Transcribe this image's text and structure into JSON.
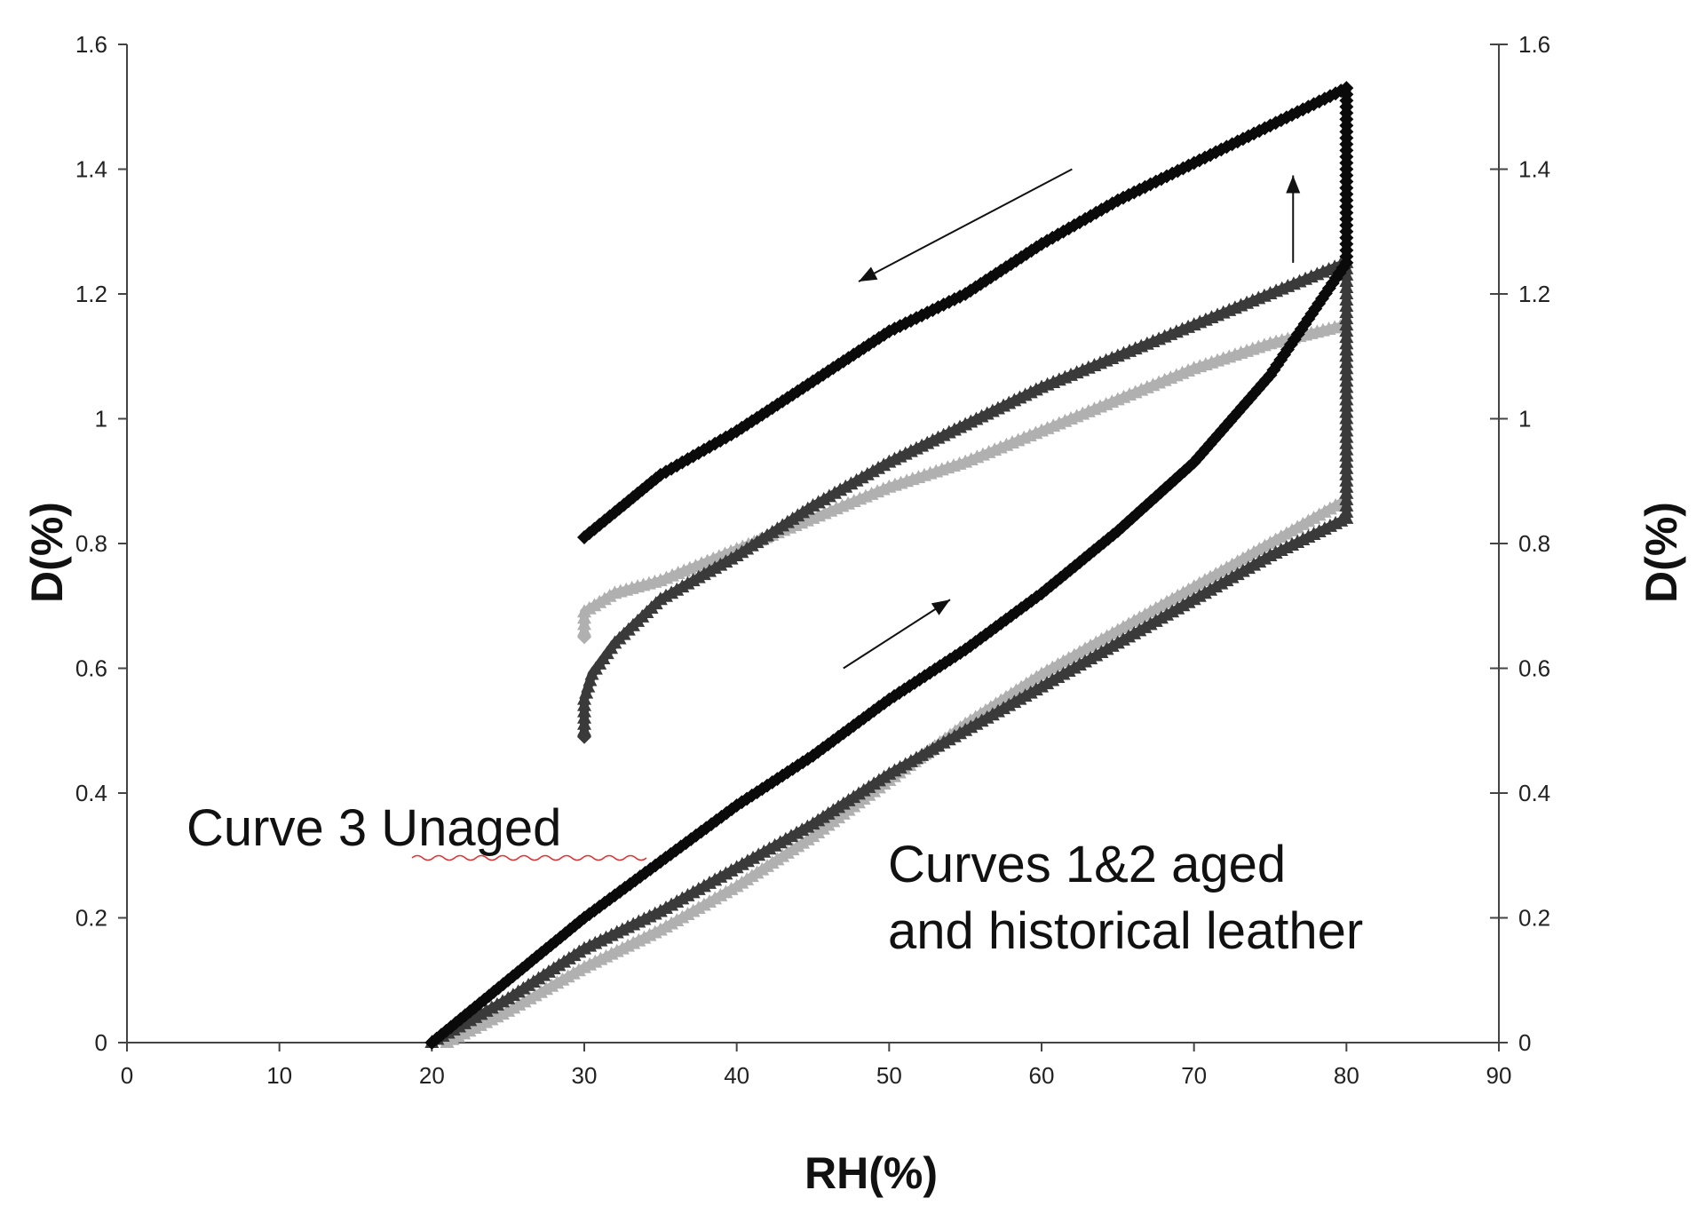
{
  "chart_data": {
    "type": "scatter",
    "xlabel": "RH(%)",
    "ylabel_left": "D(%)",
    "ylabel_right": "D(%)",
    "xlim": [
      0,
      90
    ],
    "ylim": [
      0,
      1.6
    ],
    "x_ticks": [
      "0",
      "10",
      "20",
      "30",
      "40",
      "50",
      "60",
      "70",
      "80",
      "90"
    ],
    "y_ticks": [
      "0",
      "0.2",
      "0.4",
      "0.6",
      "0.8",
      "1",
      "1.2",
      "1.4",
      "1.6"
    ],
    "grid": false,
    "annotations": {
      "unaged": "Curve 3 Unaged",
      "aged_line1": "Curves 1&2 aged",
      "aged_line2": "and historical leather"
    },
    "arrows": [
      {
        "from": [
          62,
          1.4
        ],
        "to": [
          48,
          1.22
        ]
      },
      {
        "from": [
          76.5,
          1.25
        ],
        "to": [
          76.5,
          1.39
        ]
      },
      {
        "from": [
          47,
          0.6
        ],
        "to": [
          54,
          0.71
        ]
      }
    ],
    "series": [
      {
        "color": "#0a0a0a",
        "marker": "diamond",
        "points": [
          [
            20,
            0
          ],
          [
            25,
            0.1
          ],
          [
            30,
            0.2
          ],
          [
            35,
            0.29
          ],
          [
            40,
            0.38
          ],
          [
            45,
            0.46
          ],
          [
            50,
            0.55
          ],
          [
            55,
            0.63
          ],
          [
            60,
            0.72
          ],
          [
            65,
            0.82
          ],
          [
            70,
            0.93
          ],
          [
            75,
            1.07
          ],
          [
            80,
            1.25
          ],
          [
            80,
            1.3
          ],
          [
            80,
            1.4
          ],
          [
            80,
            1.53
          ],
          [
            75,
            1.47
          ],
          [
            70,
            1.41
          ],
          [
            65,
            1.35
          ],
          [
            60,
            1.28
          ],
          [
            55,
            1.2
          ],
          [
            50,
            1.14
          ],
          [
            45,
            1.06
          ],
          [
            40,
            0.98
          ],
          [
            35,
            0.91
          ],
          [
            32,
            0.85
          ],
          [
            30,
            0.81
          ]
        ]
      },
      {
        "color": "#3a3a3a",
        "marker": "triangle",
        "points": [
          [
            20,
            0
          ],
          [
            25,
            0.07
          ],
          [
            30,
            0.15
          ],
          [
            35,
            0.21
          ],
          [
            40,
            0.28
          ],
          [
            45,
            0.35
          ],
          [
            50,
            0.43
          ],
          [
            55,
            0.5
          ],
          [
            60,
            0.57
          ],
          [
            65,
            0.64
          ],
          [
            70,
            0.71
          ],
          [
            75,
            0.78
          ],
          [
            80,
            0.84
          ],
          [
            80,
            0.95
          ],
          [
            80,
            1.1
          ],
          [
            80,
            1.25
          ],
          [
            75,
            1.2
          ],
          [
            70,
            1.15
          ],
          [
            65,
            1.1
          ],
          [
            60,
            1.05
          ],
          [
            55,
            0.99
          ],
          [
            50,
            0.93
          ],
          [
            45,
            0.86
          ],
          [
            40,
            0.78
          ],
          [
            35,
            0.71
          ],
          [
            32,
            0.64
          ],
          [
            30.5,
            0.59
          ],
          [
            30,
            0.55
          ],
          [
            30,
            0.49
          ]
        ]
      },
      {
        "color": "#b0b0b0",
        "marker": "triangle",
        "points": [
          [
            21,
            0
          ],
          [
            25,
            0.05
          ],
          [
            30,
            0.12
          ],
          [
            35,
            0.18
          ],
          [
            40,
            0.25
          ],
          [
            45,
            0.33
          ],
          [
            50,
            0.42
          ],
          [
            55,
            0.51
          ],
          [
            60,
            0.59
          ],
          [
            65,
            0.66
          ],
          [
            70,
            0.73
          ],
          [
            75,
            0.8
          ],
          [
            80,
            0.87
          ],
          [
            80,
            0.95
          ],
          [
            80,
            1.05
          ],
          [
            80,
            1.15
          ],
          [
            75,
            1.12
          ],
          [
            70,
            1.08
          ],
          [
            65,
            1.03
          ],
          [
            60,
            0.98
          ],
          [
            55,
            0.93
          ],
          [
            50,
            0.89
          ],
          [
            45,
            0.84
          ],
          [
            40,
            0.79
          ],
          [
            35,
            0.74
          ],
          [
            32,
            0.72
          ],
          [
            30,
            0.69
          ],
          [
            30,
            0.65
          ]
        ]
      }
    ]
  }
}
